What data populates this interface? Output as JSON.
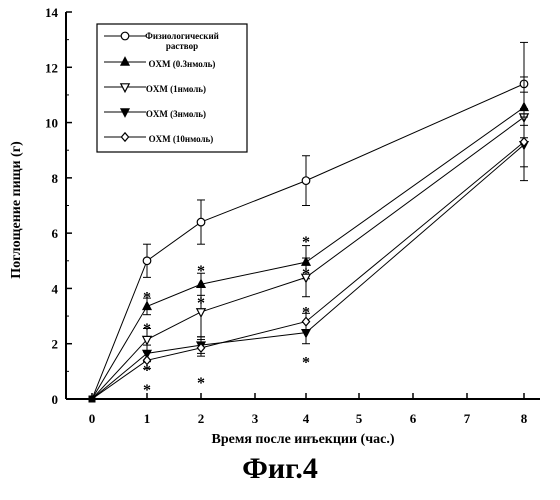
{
  "caption": "Фиг.4",
  "chart_data": {
    "type": "line",
    "xlabel": "Время после инъекции (час.)",
    "ylabel": "Поглощение пищи (г)",
    "x_ticks": [
      "0",
      "1",
      "2",
      "3",
      "4",
      "5",
      "6",
      "7",
      "8"
    ],
    "y_ticks": [
      "0",
      "2",
      "4",
      "6",
      "8",
      "10",
      "12",
      "14"
    ],
    "ylim": [
      0,
      14
    ],
    "x_scale": "categorical-position",
    "legend_position": "top-left",
    "series": [
      {
        "name": "Физиологический раствор",
        "marker": "open-circle",
        "points": [
          {
            "x": "0",
            "y": 0,
            "err": 0
          },
          {
            "x": "1",
            "y": 5.0,
            "err": 0.6
          },
          {
            "x": "2",
            "y": 6.4,
            "err": 0.8
          },
          {
            "x": "4",
            "y": 7.9,
            "err": 0.9
          },
          {
            "x": "8",
            "y": 11.4,
            "err": 1.5
          }
        ]
      },
      {
        "name": "OXM (0.3нмоль)",
        "marker": "filled-triangle-up",
        "points": [
          {
            "x": "0",
            "y": 0,
            "err": 0
          },
          {
            "x": "1",
            "y": 3.35,
            "err": 0.3
          },
          {
            "x": "2",
            "y": 4.15,
            "err": 0.4
          },
          {
            "x": "4",
            "y": 4.95,
            "err": 0.6
          },
          {
            "x": "8",
            "y": 10.55,
            "err": 1.1
          }
        ]
      },
      {
        "name": "OXM (1нмоль)",
        "marker": "open-triangle-down",
        "points": [
          {
            "x": "0",
            "y": 0,
            "err": 0
          },
          {
            "x": "1",
            "y": 2.15,
            "err": 0.4
          },
          {
            "x": "2",
            "y": 3.15,
            "err": 0.9
          },
          {
            "x": "4",
            "y": 4.4,
            "err": 0.7
          },
          {
            "x": "8",
            "y": 10.2,
            "err": 0.9
          }
        ]
      },
      {
        "name": "OXM (3нмоль)",
        "marker": "filled-triangle-down",
        "points": [
          {
            "x": "0",
            "y": 0,
            "err": 0
          },
          {
            "x": "1",
            "y": 1.65,
            "err": 0.3
          },
          {
            "x": "2",
            "y": 1.95,
            "err": 0.3
          },
          {
            "x": "4",
            "y": 2.4,
            "err": 0.4
          },
          {
            "x": "8",
            "y": 9.2,
            "err": 1.3
          }
        ]
      },
      {
        "name": "OXM (10нмоль)",
        "marker": "open-diamond",
        "points": [
          {
            "x": "0",
            "y": 0,
            "err": 0
          },
          {
            "x": "1",
            "y": 1.4,
            "err": 0.3
          },
          {
            "x": "2",
            "y": 1.85,
            "err": 0.3
          },
          {
            "x": "4",
            "y": 2.8,
            "err": 0.3
          },
          {
            "x": "8",
            "y": 9.3,
            "err": 0.9
          }
        ]
      }
    ],
    "annotations": [
      {
        "text": "*",
        "x": "1",
        "y": 3.75
      },
      {
        "text": "*",
        "x": "1",
        "y": 2.6
      },
      {
        "text": "*",
        "x": "1",
        "y": 1.1
      },
      {
        "text": "*",
        "x": "1",
        "y": 0.4
      },
      {
        "text": "*",
        "x": "2",
        "y": 4.7
      },
      {
        "text": "*",
        "x": "2",
        "y": 3.55
      },
      {
        "text": "*",
        "x": "2",
        "y": 0.65
      },
      {
        "text": "*",
        "x": "4",
        "y": 5.75
      },
      {
        "text": "*",
        "x": "4",
        "y": 4.6
      },
      {
        "text": "*",
        "x": "4",
        "y": 3.2
      },
      {
        "text": "*",
        "x": "4",
        "y": 1.4
      }
    ]
  }
}
